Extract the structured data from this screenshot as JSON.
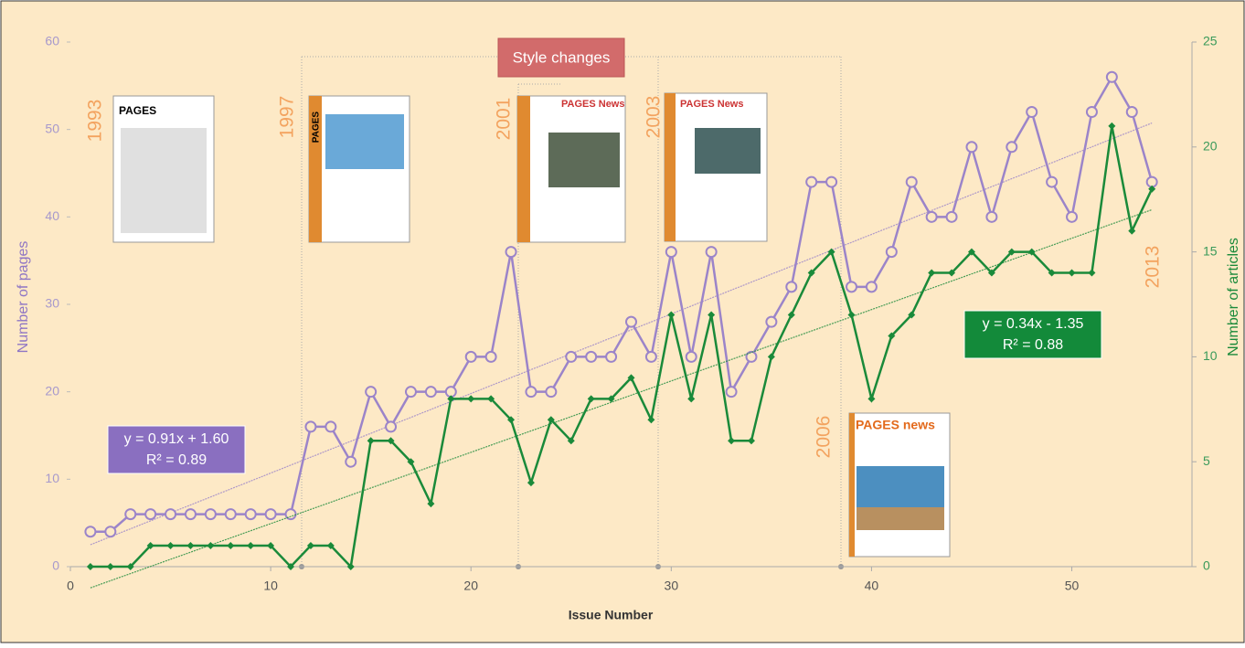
{
  "chart_data": {
    "type": "line",
    "annotation": "Style changes",
    "x_label": "Issue Number",
    "y_label": "Number of pages",
    "y2_label": "Number of articles",
    "year_labels": [
      "1993",
      "1997",
      "2001",
      "2003",
      "2006",
      "2013"
    ],
    "covers": [
      "PAGES",
      "PAGES",
      "PAGES News",
      "PAGES News",
      "PAGES news"
    ],
    "x": [
      1,
      2,
      3,
      4,
      5,
      6,
      7,
      8,
      9,
      10,
      11,
      12,
      13,
      14,
      15,
      16,
      17,
      18,
      19,
      20,
      21,
      22,
      23,
      24,
      25,
      26,
      27,
      28,
      29,
      30,
      31,
      32,
      33,
      34,
      35,
      36,
      37,
      38,
      39,
      40,
      41,
      42,
      43,
      44,
      45,
      46,
      47,
      48,
      49,
      50,
      51,
      52,
      53,
      54
    ],
    "series": [
      {
        "name": "Number of pages",
        "color": "#9b84c9",
        "axis": "y",
        "values": [
          4,
          4,
          6,
          6,
          6,
          6,
          6,
          6,
          6,
          6,
          6,
          16,
          16,
          12,
          20,
          16,
          20,
          20,
          20,
          24,
          24,
          36,
          20,
          20,
          24,
          24,
          24,
          28,
          24,
          36,
          24,
          36,
          20,
          24,
          28,
          32,
          44,
          44,
          32,
          32,
          36,
          44,
          40,
          40,
          48,
          40,
          48,
          52,
          44,
          40,
          52,
          56,
          52,
          44
        ],
        "trend": {
          "slope": 0.91,
          "intercept": 1.6,
          "equation": "y = 0.91x + 1.60",
          "r2": "R² = 0.89"
        }
      },
      {
        "name": "Number of articles",
        "color": "#1a8a3a",
        "axis": "y2",
        "values": [
          0,
          0,
          0,
          1,
          1,
          1,
          1,
          1,
          1,
          1,
          0,
          1,
          1,
          0,
          6,
          6,
          5,
          3,
          8,
          8,
          8,
          7,
          4,
          7,
          6,
          8,
          8,
          9,
          7,
          12,
          8,
          12,
          6,
          6,
          10,
          12,
          14,
          15,
          12,
          8,
          11,
          12,
          14,
          14,
          15,
          14,
          15,
          15,
          14,
          14,
          14,
          21,
          16,
          18
        ],
        "trend": {
          "slope": 0.34,
          "intercept": -1.35,
          "equation": "y = 0.34x - 1.35",
          "r2": "R² = 0.88"
        }
      }
    ],
    "xlim": [
      0,
      56
    ],
    "xticks": [
      0,
      10,
      20,
      30,
      40,
      50
    ],
    "ylim": [
      0,
      60
    ],
    "yticks": [
      0,
      10,
      20,
      30,
      40,
      50,
      60
    ],
    "y2lim": [
      0,
      25
    ],
    "y2ticks": [
      0,
      5,
      10,
      15,
      20,
      25
    ]
  }
}
